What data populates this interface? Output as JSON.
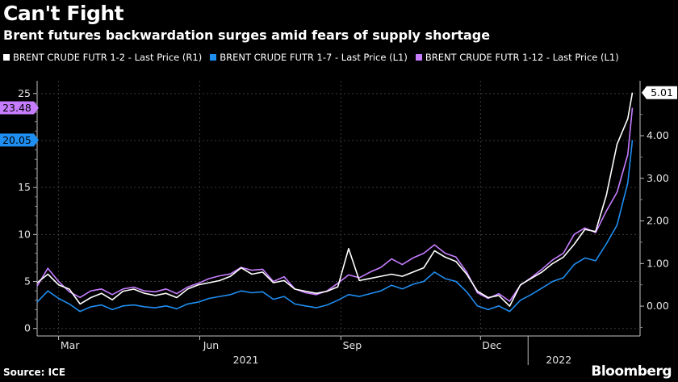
{
  "title": "Can't Fight",
  "subtitle": "Brent futures backwardation surges amid fears of supply shortage",
  "source": "Source: ICE",
  "brand": "Bloomberg",
  "chart_data": {
    "type": "line",
    "grid": true,
    "legend_position": "top-left",
    "y_left": {
      "ticks": [
        0,
        5,
        10,
        15,
        20,
        25
      ],
      "range": [
        -0.8,
        25.5
      ]
    },
    "y_right": {
      "ticks": [
        "0.00",
        "1.00",
        "2.00",
        "3.00",
        "4.00"
      ],
      "range": [
        -0.7,
        5.1
      ]
    },
    "x_ticks": [
      {
        "label": "Mar",
        "date": "2021-03-01"
      },
      {
        "label": "Jun",
        "date": "2021-06-01"
      },
      {
        "label": "Sep",
        "date": "2021-09-01"
      },
      {
        "label": "Dec",
        "date": "2021-12-01"
      }
    ],
    "year_labels": [
      {
        "label": "2021",
        "date": "2021-07-01"
      },
      {
        "label": "2022",
        "date": "2022-01-21"
      }
    ],
    "x_range": [
      "2021-02-15",
      "2022-03-15"
    ],
    "series": [
      {
        "name": "BRENT CRUDE FUTR 1-2 - Last Price (R1)",
        "axis": "right",
        "color": "#ffffff",
        "last_label": "5.01",
        "points": [
          [
            "2021-02-15",
            0.55
          ],
          [
            "2021-02-22",
            0.75
          ],
          [
            "2021-03-01",
            0.5
          ],
          [
            "2021-03-08",
            0.4
          ],
          [
            "2021-03-15",
            0.05
          ],
          [
            "2021-03-22",
            0.2
          ],
          [
            "2021-03-29",
            0.3
          ],
          [
            "2021-04-05",
            0.15
          ],
          [
            "2021-04-12",
            0.35
          ],
          [
            "2021-04-19",
            0.4
          ],
          [
            "2021-04-26",
            0.3
          ],
          [
            "2021-05-03",
            0.25
          ],
          [
            "2021-05-10",
            0.3
          ],
          [
            "2021-05-17",
            0.2
          ],
          [
            "2021-05-24",
            0.4
          ],
          [
            "2021-05-31",
            0.5
          ],
          [
            "2021-06-07",
            0.55
          ],
          [
            "2021-06-14",
            0.6
          ],
          [
            "2021-06-21",
            0.7
          ],
          [
            "2021-06-28",
            0.9
          ],
          [
            "2021-07-05",
            0.75
          ],
          [
            "2021-07-12",
            0.8
          ],
          [
            "2021-07-19",
            0.55
          ],
          [
            "2021-07-26",
            0.6
          ],
          [
            "2021-08-02",
            0.4
          ],
          [
            "2021-08-09",
            0.35
          ],
          [
            "2021-08-16",
            0.3
          ],
          [
            "2021-08-23",
            0.35
          ],
          [
            "2021-08-30",
            0.45
          ],
          [
            "2021-09-06",
            1.35
          ],
          [
            "2021-09-13",
            0.6
          ],
          [
            "2021-09-20",
            0.65
          ],
          [
            "2021-09-27",
            0.7
          ],
          [
            "2021-10-04",
            0.75
          ],
          [
            "2021-10-11",
            0.7
          ],
          [
            "2021-10-18",
            0.8
          ],
          [
            "2021-10-25",
            0.9
          ],
          [
            "2021-11-01",
            1.3
          ],
          [
            "2021-11-08",
            1.15
          ],
          [
            "2021-11-15",
            1.05
          ],
          [
            "2021-11-22",
            0.75
          ],
          [
            "2021-11-29",
            0.35
          ],
          [
            "2021-12-06",
            0.2
          ],
          [
            "2021-12-13",
            0.25
          ],
          [
            "2021-12-20",
            0.0
          ],
          [
            "2021-12-27",
            0.5
          ],
          [
            "2022-01-03",
            0.65
          ],
          [
            "2022-01-10",
            0.8
          ],
          [
            "2022-01-17",
            1.0
          ],
          [
            "2022-01-24",
            1.15
          ],
          [
            "2022-01-31",
            1.45
          ],
          [
            "2022-02-07",
            1.8
          ],
          [
            "2022-02-14",
            1.75
          ],
          [
            "2022-02-21",
            2.6
          ],
          [
            "2022-02-28",
            3.8
          ],
          [
            "2022-03-07",
            4.4
          ],
          [
            "2022-03-10",
            5.01
          ]
        ]
      },
      {
        "name": "BRENT CRUDE FUTR 1-7 - Last Price (L1)",
        "axis": "left",
        "color": "#1f8ef1",
        "last_label": "20.05",
        "points": [
          [
            "2021-02-15",
            2.8
          ],
          [
            "2021-02-22",
            4.0
          ],
          [
            "2021-03-01",
            3.2
          ],
          [
            "2021-03-08",
            2.6
          ],
          [
            "2021-03-15",
            1.8
          ],
          [
            "2021-03-22",
            2.3
          ],
          [
            "2021-03-29",
            2.5
          ],
          [
            "2021-04-05",
            2.0
          ],
          [
            "2021-04-12",
            2.4
          ],
          [
            "2021-04-19",
            2.5
          ],
          [
            "2021-04-26",
            2.3
          ],
          [
            "2021-05-03",
            2.2
          ],
          [
            "2021-05-10",
            2.4
          ],
          [
            "2021-05-17",
            2.1
          ],
          [
            "2021-05-24",
            2.6
          ],
          [
            "2021-05-31",
            2.8
          ],
          [
            "2021-06-07",
            3.2
          ],
          [
            "2021-06-14",
            3.4
          ],
          [
            "2021-06-21",
            3.6
          ],
          [
            "2021-06-28",
            4.0
          ],
          [
            "2021-07-05",
            3.8
          ],
          [
            "2021-07-12",
            3.9
          ],
          [
            "2021-07-19",
            3.1
          ],
          [
            "2021-07-26",
            3.4
          ],
          [
            "2021-08-02",
            2.6
          ],
          [
            "2021-08-09",
            2.4
          ],
          [
            "2021-08-16",
            2.2
          ],
          [
            "2021-08-23",
            2.5
          ],
          [
            "2021-08-30",
            3.0
          ],
          [
            "2021-09-06",
            3.6
          ],
          [
            "2021-09-13",
            3.4
          ],
          [
            "2021-09-20",
            3.7
          ],
          [
            "2021-09-27",
            4.0
          ],
          [
            "2021-10-04",
            4.6
          ],
          [
            "2021-10-11",
            4.2
          ],
          [
            "2021-10-18",
            4.7
          ],
          [
            "2021-10-25",
            5.0
          ],
          [
            "2021-11-01",
            6.0
          ],
          [
            "2021-11-08",
            5.3
          ],
          [
            "2021-11-15",
            5.0
          ],
          [
            "2021-11-22",
            3.9
          ],
          [
            "2021-11-29",
            2.4
          ],
          [
            "2021-12-06",
            2.0
          ],
          [
            "2021-12-13",
            2.4
          ],
          [
            "2021-12-20",
            1.8
          ],
          [
            "2021-12-27",
            3.0
          ],
          [
            "2022-01-03",
            3.6
          ],
          [
            "2022-01-10",
            4.3
          ],
          [
            "2022-01-17",
            5.0
          ],
          [
            "2022-01-24",
            5.4
          ],
          [
            "2022-01-31",
            6.8
          ],
          [
            "2022-02-07",
            7.5
          ],
          [
            "2022-02-14",
            7.2
          ],
          [
            "2022-02-21",
            9.0
          ],
          [
            "2022-02-28",
            11.0
          ],
          [
            "2022-03-07",
            15.5
          ],
          [
            "2022-03-10",
            20.05
          ]
        ]
      },
      {
        "name": "BRENT CRUDE FUTR 1-12 - Last Price (L1)",
        "axis": "left",
        "color": "#c77dff",
        "last_label": "23.48",
        "points": [
          [
            "2021-02-15",
            4.5
          ],
          [
            "2021-02-22",
            6.4
          ],
          [
            "2021-03-01",
            5.0
          ],
          [
            "2021-03-08",
            3.9
          ],
          [
            "2021-03-15",
            3.3
          ],
          [
            "2021-03-22",
            4.0
          ],
          [
            "2021-03-29",
            4.2
          ],
          [
            "2021-04-05",
            3.6
          ],
          [
            "2021-04-12",
            4.2
          ],
          [
            "2021-04-19",
            4.4
          ],
          [
            "2021-04-26",
            4.0
          ],
          [
            "2021-05-03",
            3.9
          ],
          [
            "2021-05-10",
            4.2
          ],
          [
            "2021-05-17",
            3.7
          ],
          [
            "2021-05-24",
            4.4
          ],
          [
            "2021-05-31",
            4.8
          ],
          [
            "2021-06-07",
            5.3
          ],
          [
            "2021-06-14",
            5.6
          ],
          [
            "2021-06-21",
            5.8
          ],
          [
            "2021-06-28",
            6.5
          ],
          [
            "2021-07-05",
            6.2
          ],
          [
            "2021-07-12",
            6.3
          ],
          [
            "2021-07-19",
            5.0
          ],
          [
            "2021-07-26",
            5.5
          ],
          [
            "2021-08-02",
            4.2
          ],
          [
            "2021-08-09",
            3.8
          ],
          [
            "2021-08-16",
            3.6
          ],
          [
            "2021-08-23",
            4.0
          ],
          [
            "2021-08-30",
            4.8
          ],
          [
            "2021-09-06",
            5.7
          ],
          [
            "2021-09-13",
            5.4
          ],
          [
            "2021-09-20",
            6.0
          ],
          [
            "2021-09-27",
            6.5
          ],
          [
            "2021-10-04",
            7.4
          ],
          [
            "2021-10-11",
            6.8
          ],
          [
            "2021-10-18",
            7.5
          ],
          [
            "2021-10-25",
            8.0
          ],
          [
            "2021-11-01",
            8.9
          ],
          [
            "2021-11-08",
            8.0
          ],
          [
            "2021-11-15",
            7.6
          ],
          [
            "2021-11-22",
            6.0
          ],
          [
            "2021-11-29",
            3.8
          ],
          [
            "2021-12-06",
            3.2
          ],
          [
            "2021-12-13",
            3.7
          ],
          [
            "2021-12-20",
            2.9
          ],
          [
            "2021-12-27",
            4.6
          ],
          [
            "2022-01-03",
            5.4
          ],
          [
            "2022-01-10",
            6.3
          ],
          [
            "2022-01-17",
            7.3
          ],
          [
            "2022-01-24",
            8.0
          ],
          [
            "2022-01-31",
            10.0
          ],
          [
            "2022-02-07",
            10.7
          ],
          [
            "2022-02-14",
            10.2
          ],
          [
            "2022-02-21",
            12.5
          ],
          [
            "2022-02-28",
            14.5
          ],
          [
            "2022-03-07",
            18.5
          ],
          [
            "2022-03-10",
            23.48
          ]
        ]
      }
    ]
  }
}
